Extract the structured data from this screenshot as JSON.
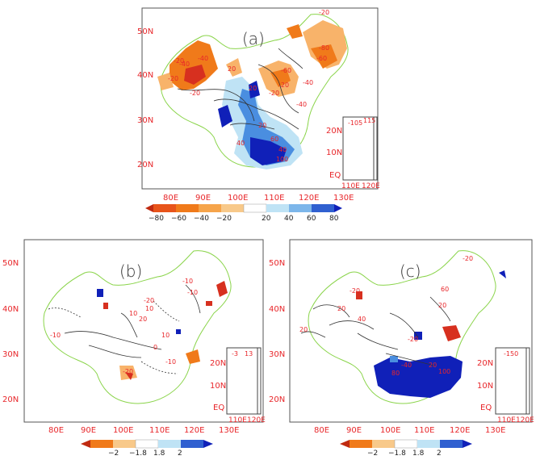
{
  "panels": {
    "a": {
      "label": "(a)",
      "lat_ticks": [
        "50N",
        "40N",
        "30N",
        "20N"
      ],
      "lon_ticks": [
        "80E",
        "90E",
        "100E",
        "110E",
        "120E",
        "130E"
      ],
      "inset_lat_ticks": [
        "20N",
        "10N",
        "EQ"
      ],
      "inset_lon_ticks": [
        "110E",
        "120E"
      ],
      "colorbar_labels": [
        "−80",
        "−60",
        "−40",
        "−20",
        "20",
        "40",
        "60",
        "80"
      ],
      "contour_labels": [
        "-20",
        "-40",
        "-20",
        "-40",
        "-20",
        "-60",
        "-40",
        "-20",
        "-20",
        "20",
        "20",
        "40",
        "60",
        "20",
        "-20",
        "-40",
        "-80",
        "-60",
        "40",
        "100",
        "-105",
        "115"
      ]
    },
    "b": {
      "label": "(b)",
      "lat_ticks": [
        "50N",
        "40N",
        "30N",
        "20N"
      ],
      "lon_ticks": [
        "80E",
        "90E",
        "100E",
        "110E",
        "120E",
        "130E"
      ],
      "inset_lat_ticks": [
        "20N",
        "10N",
        "EQ"
      ],
      "inset_lon_ticks": [
        "110E",
        "120E"
      ],
      "colorbar_labels": [
        "−2",
        "−1.8",
        "1.8",
        "2"
      ],
      "contour_labels": [
        "-10",
        "-20",
        "10",
        "-10",
        "20",
        "10",
        "-10",
        "0",
        "-20",
        "10",
        "-10",
        "-3",
        "13"
      ]
    },
    "c": {
      "label": "(c)",
      "lat_ticks": [
        "50N",
        "40N",
        "30N",
        "20N"
      ],
      "lon_ticks": [
        "80E",
        "90E",
        "100E",
        "110E",
        "120E",
        "130E"
      ],
      "inset_lat_ticks": [
        "20N",
        "10N",
        "EQ"
      ],
      "inset_lon_ticks": [
        "110E",
        "120E"
      ],
      "colorbar_labels": [
        "−2",
        "−1.8",
        "1.8",
        "2"
      ],
      "contour_labels": [
        "20",
        "-20",
        "20",
        "40",
        "60",
        "-20",
        "20",
        "-20",
        "80",
        "-40",
        "20",
        "100",
        "-150"
      ]
    }
  },
  "colors": {
    "neg_strong": "#d7301f",
    "neg_mid": "#f07a1a",
    "neg_light": "#f8b36a",
    "pos_light": "#bfe3f5",
    "pos_mid": "#4a8ee0",
    "pos_strong": "#1020b8",
    "boundary": "#8ad44a",
    "tick": "#e8262a"
  }
}
